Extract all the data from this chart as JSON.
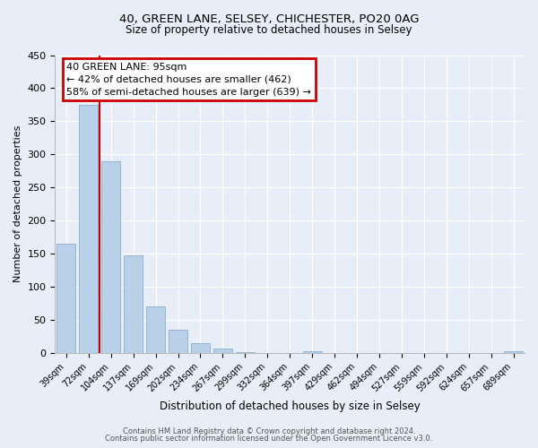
{
  "title1": "40, GREEN LANE, SELSEY, CHICHESTER, PO20 0AG",
  "title2": "Size of property relative to detached houses in Selsey",
  "xlabel": "Distribution of detached houses by size in Selsey",
  "ylabel": "Number of detached properties",
  "bin_labels": [
    "39sqm",
    "72sqm",
    "104sqm",
    "137sqm",
    "169sqm",
    "202sqm",
    "234sqm",
    "267sqm",
    "299sqm",
    "332sqm",
    "364sqm",
    "397sqm",
    "429sqm",
    "462sqm",
    "494sqm",
    "527sqm",
    "559sqm",
    "592sqm",
    "624sqm",
    "657sqm",
    "689sqm"
  ],
  "bar_values": [
    165,
    375,
    290,
    148,
    70,
    35,
    15,
    7,
    1,
    0,
    0,
    2,
    0,
    0,
    0,
    0,
    0,
    0,
    0,
    0,
    2
  ],
  "bar_color": "#b8d0e8",
  "bar_edge_color": "#8ab0d0",
  "marker_line_color": "#cc0000",
  "ylim": [
    0,
    450
  ],
  "yticks": [
    0,
    50,
    100,
    150,
    200,
    250,
    300,
    350,
    400,
    450
  ],
  "annotation_title": "40 GREEN LANE: 95sqm",
  "annotation_line1": "← 42% of detached houses are smaller (462)",
  "annotation_line2": "58% of semi-detached houses are larger (639) →",
  "annotation_box_color": "#cc0000",
  "footer1": "Contains HM Land Registry data © Crown copyright and database right 2024.",
  "footer2": "Contains public sector information licensed under the Open Government Licence v3.0.",
  "bg_color": "#e8eef8",
  "grid_color": "#ffffff"
}
